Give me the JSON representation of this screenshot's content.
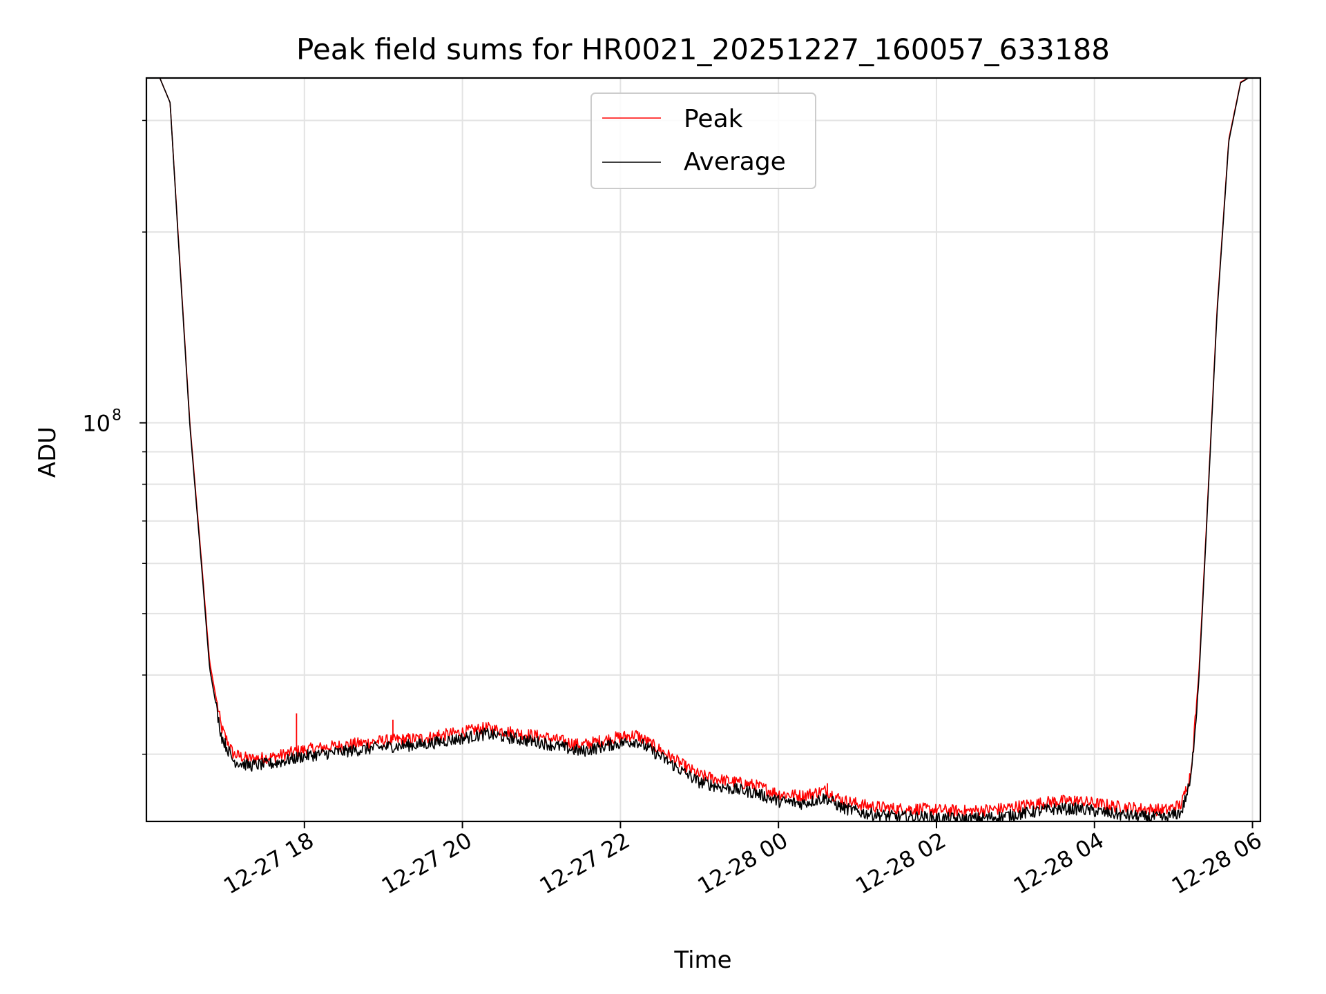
{
  "chart_data": {
    "type": "line",
    "title": "Peak field sums for HR0021_20251227_160057_633188",
    "xlabel": "Time",
    "ylabel": "ADU",
    "yscale": "log",
    "grid": true,
    "legend_position": "upper-center",
    "xlim": [
      16.0,
      30.1
    ],
    "ylim": [
      23500000.0,
      350000000.0
    ],
    "x_unit": "hours since 2025-12-27 00:00",
    "x_ticks": [
      {
        "value": 18,
        "label": "12-27 18"
      },
      {
        "value": 20,
        "label": "12-27 20"
      },
      {
        "value": 22,
        "label": "12-27 22"
      },
      {
        "value": 24,
        "label": "12-28 00"
      },
      {
        "value": 26,
        "label": "12-28 02"
      },
      {
        "value": 28,
        "label": "12-28 04"
      },
      {
        "value": 30,
        "label": "12-28 06"
      }
    ],
    "y_major_tick": {
      "value": 100000000,
      "label": "10",
      "exponent": "8"
    },
    "y_minor_ticks": [
      30000000,
      40000000,
      50000000,
      60000000,
      70000000,
      80000000,
      90000000,
      200000000,
      300000000
    ],
    "series": [
      {
        "name": "Peak",
        "color": "#ff0000",
        "x": [
          16.17,
          16.3,
          16.4,
          16.55,
          16.7,
          16.8,
          16.95,
          17.1,
          17.3,
          17.6,
          18.0,
          18.5,
          19.0,
          19.5,
          20.0,
          20.3,
          20.7,
          21.0,
          21.5,
          21.9,
          22.2,
          22.5,
          22.8,
          23.0,
          23.3,
          23.7,
          24.0,
          24.3,
          24.6,
          24.8,
          25.1,
          25.5,
          25.8,
          26.0,
          26.4,
          26.8,
          27.2,
          27.5,
          27.8,
          28.0,
          28.3,
          28.6,
          28.9,
          29.1,
          29.22,
          29.32,
          29.42,
          29.55,
          29.7,
          29.85,
          29.95,
          30.1
        ],
        "y": [
          350000000,
          320000000,
          200000000,
          100000000,
          60000000,
          42000000,
          33000000,
          30000000,
          29500000,
          29700000,
          30500000,
          31000000,
          31500000,
          31800000,
          32500000,
          33000000,
          32400000,
          32000000,
          31000000,
          31800000,
          32200000,
          30500000,
          28800000,
          27800000,
          27300000,
          26800000,
          26000000,
          25800000,
          26300000,
          25400000,
          24900000,
          24600000,
          24600000,
          24500000,
          24400000,
          24600000,
          25000000,
          25300000,
          25300000,
          25100000,
          24800000,
          24600000,
          24500000,
          25000000,
          28000000,
          40000000,
          70000000,
          150000000,
          280000000,
          345000000,
          350000000,
          350000000
        ],
        "spikes": [
          {
            "x": 17.9,
            "y": 34800000
          },
          {
            "x": 19.12,
            "y": 34000000
          },
          {
            "x": 19.7,
            "y": 32800000
          },
          {
            "x": 20.0,
            "y": 32900000
          },
          {
            "x": 24.62,
            "y": 27000000
          },
          {
            "x": 27.75,
            "y": 25800000
          }
        ]
      },
      {
        "name": "Average",
        "color": "#000000",
        "x": [
          16.17,
          16.3,
          16.4,
          16.55,
          16.7,
          16.8,
          16.95,
          17.1,
          17.3,
          17.6,
          18.0,
          18.5,
          19.0,
          19.5,
          20.0,
          20.3,
          20.7,
          21.0,
          21.5,
          21.9,
          22.2,
          22.5,
          22.8,
          23.0,
          23.3,
          23.7,
          24.0,
          24.3,
          24.6,
          24.8,
          25.1,
          25.5,
          25.8,
          26.0,
          26.4,
          26.8,
          27.2,
          27.5,
          27.8,
          28.0,
          28.3,
          28.6,
          28.9,
          29.1,
          29.22,
          29.32,
          29.42,
          29.55,
          29.7,
          29.85,
          29.95,
          30.1
        ],
        "y": [
          350000000,
          320000000,
          198000000,
          99000000,
          59000000,
          41000000,
          32000000,
          29300000,
          28800000,
          29000000,
          29800000,
          30300000,
          30800000,
          31100000,
          31800000,
          32300000,
          31700000,
          31300000,
          30300000,
          31100000,
          31500000,
          29800000,
          28100000,
          27100000,
          26600000,
          26100000,
          25300000,
          25100000,
          25600000,
          24700000,
          24200000,
          23900000,
          23900000,
          23800000,
          23700000,
          23900000,
          24300000,
          24600000,
          24600000,
          24400000,
          24100000,
          23900000,
          23800000,
          24300000,
          27300000,
          39000000,
          69000000,
          148000000,
          278000000,
          344000000,
          350000000,
          350000000
        ]
      }
    ]
  }
}
